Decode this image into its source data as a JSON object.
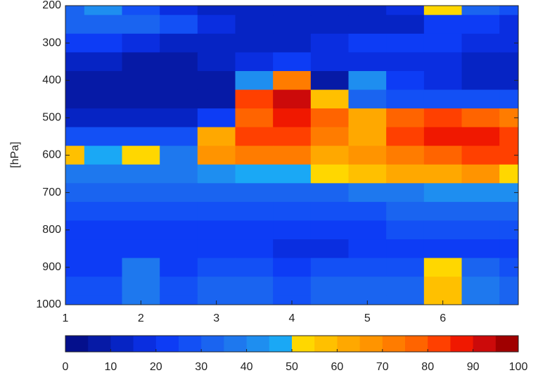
{
  "chart_data": {
    "type": "contourf",
    "y_label": "[hPa]",
    "x": [
      1,
      1.5,
      2,
      2.5,
      3,
      3.5,
      4,
      4.5,
      5,
      5.5,
      6,
      6.5,
      7
    ],
    "y": [
      200,
      250,
      300,
      350,
      400,
      450,
      500,
      550,
      600,
      650,
      700,
      750,
      800,
      850,
      900,
      950,
      1000
    ],
    "z": [
      [
        30,
        40,
        25,
        15,
        10,
        10,
        10,
        10,
        10,
        15,
        50,
        30,
        25
      ],
      [
        30,
        30,
        30,
        25,
        15,
        10,
        10,
        10,
        10,
        10,
        20,
        20,
        15
      ],
      [
        20,
        20,
        15,
        10,
        10,
        10,
        10,
        15,
        20,
        20,
        20,
        15,
        15
      ],
      [
        10,
        10,
        8,
        8,
        10,
        15,
        20,
        15,
        15,
        15,
        15,
        10,
        10
      ],
      [
        5,
        5,
        5,
        5,
        5,
        40,
        70,
        5,
        40,
        20,
        15,
        10,
        10
      ],
      [
        5,
        5,
        5,
        5,
        5,
        80,
        90,
        55,
        30,
        25,
        25,
        25,
        25
      ],
      [
        10,
        10,
        10,
        10,
        20,
        75,
        85,
        75,
        60,
        75,
        80,
        75,
        70
      ],
      [
        25,
        25,
        25,
        25,
        60,
        80,
        80,
        70,
        60,
        80,
        85,
        85,
        80
      ],
      [
        55,
        45,
        50,
        35,
        65,
        70,
        70,
        60,
        65,
        70,
        75,
        80,
        80
      ],
      [
        35,
        35,
        35,
        35,
        40,
        45,
        45,
        50,
        55,
        60,
        60,
        65,
        50
      ],
      [
        30,
        30,
        30,
        30,
        30,
        30,
        30,
        30,
        35,
        35,
        40,
        40,
        40
      ],
      [
        25,
        25,
        25,
        25,
        25,
        25,
        25,
        25,
        25,
        30,
        30,
        30,
        30
      ],
      [
        20,
        20,
        20,
        20,
        20,
        20,
        20,
        20,
        20,
        25,
        25,
        25,
        25
      ],
      [
        20,
        20,
        20,
        20,
        20,
        20,
        15,
        15,
        20,
        20,
        20,
        20,
        20
      ],
      [
        20,
        20,
        35,
        20,
        25,
        25,
        20,
        25,
        25,
        25,
        50,
        30,
        25
      ],
      [
        25,
        25,
        35,
        25,
        30,
        30,
        25,
        30,
        30,
        30,
        55,
        35,
        30
      ],
      [
        25,
        25,
        35,
        25,
        30,
        30,
        25,
        30,
        30,
        30,
        55,
        35,
        30
      ]
    ],
    "xlim": [
      1,
      7
    ],
    "xticks": [
      1,
      2,
      3,
      4,
      5,
      6
    ],
    "ylim": [
      200,
      1000
    ],
    "y_reversed": true,
    "yticks": [
      200,
      300,
      400,
      500,
      600,
      700,
      800,
      900,
      1000
    ],
    "colorbar": {
      "lim": [
        0,
        100
      ],
      "levels": [
        0,
        5,
        10,
        15,
        20,
        25,
        30,
        35,
        40,
        45,
        50,
        55,
        60,
        65,
        70,
        75,
        80,
        85,
        90,
        95,
        100
      ],
      "ticks": [
        0,
        10,
        20,
        30,
        40,
        50,
        60,
        70,
        80,
        90,
        100
      ],
      "colors": [
        "#040f8c",
        "#061aa6",
        "#0624c4",
        "#0a2ee0",
        "#0d3cf5",
        "#1350f5",
        "#1a64f0",
        "#1e78ee",
        "#1e8ef0",
        "#1aa8f5",
        "#ffd700",
        "#ffc000",
        "#ffa800",
        "#ff9400",
        "#ff7c00",
        "#ff6400",
        "#ff4000",
        "#f01800",
        "#cc0a0a",
        "#a00000"
      ]
    }
  }
}
